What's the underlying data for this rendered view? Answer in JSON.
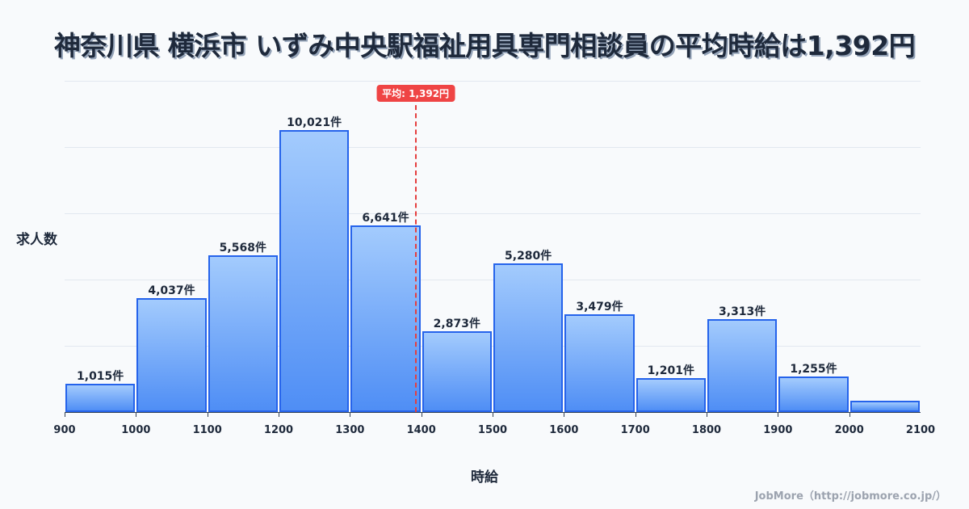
{
  "title": "神奈川県 横浜市 いずみ中央駅福祉用具専門相談員の平均時給は1,392円",
  "average": {
    "label": "平均: 1,392円",
    "value": 1392
  },
  "axes": {
    "ylabel": "求人数",
    "xlabel": "時給"
  },
  "credit": "JobMore（http://jobmore.co.jp/）",
  "colors": {
    "bar_top": "#a3cbfd",
    "bar_bottom": "#4f8ef5",
    "bar_border": "#2563eb",
    "average_line": "#ef4444",
    "text": "#1e293b"
  },
  "chart_data": {
    "type": "bar",
    "title": "神奈川県 横浜市 いずみ中央駅福祉用具専門相談員の平均時給は1,392円",
    "xlabel": "時給",
    "ylabel": "求人数",
    "bins": [
      {
        "from": 900,
        "to": 1000,
        "value": 1015,
        "label": "1,015件"
      },
      {
        "from": 1000,
        "to": 1100,
        "value": 4037,
        "label": "4,037件"
      },
      {
        "from": 1100,
        "to": 1200,
        "value": 5568,
        "label": "5,568件"
      },
      {
        "from": 1200,
        "to": 1300,
        "value": 10021,
        "label": "10,021件"
      },
      {
        "from": 1300,
        "to": 1400,
        "value": 6641,
        "label": "6,641件"
      },
      {
        "from": 1400,
        "to": 1500,
        "value": 2873,
        "label": "2,873件"
      },
      {
        "from": 1500,
        "to": 1600,
        "value": 5280,
        "label": "5,280件"
      },
      {
        "from": 1600,
        "to": 1700,
        "value": 3479,
        "label": "3,479件"
      },
      {
        "from": 1700,
        "to": 1800,
        "value": 1201,
        "label": "1,201件"
      },
      {
        "from": 1800,
        "to": 1900,
        "value": 3313,
        "label": "3,313件"
      },
      {
        "from": 1900,
        "to": 2000,
        "value": 1255,
        "label": "1,255件"
      },
      {
        "from": 2000,
        "to": 2100,
        "value": 400,
        "label": ""
      }
    ],
    "x_ticks": [
      "900",
      "1000",
      "1100",
      "1200",
      "1300",
      "1400",
      "1500",
      "1600",
      "1700",
      "1800",
      "1900",
      "2000",
      "2100"
    ],
    "xlim": [
      900,
      2100
    ],
    "ylim": [
      0,
      11772
    ],
    "grid": true,
    "legend": "none",
    "annotations": [
      {
        "type": "vline",
        "x": 1392,
        "text": "平均: 1,392円",
        "color": "#ef4444"
      }
    ]
  }
}
